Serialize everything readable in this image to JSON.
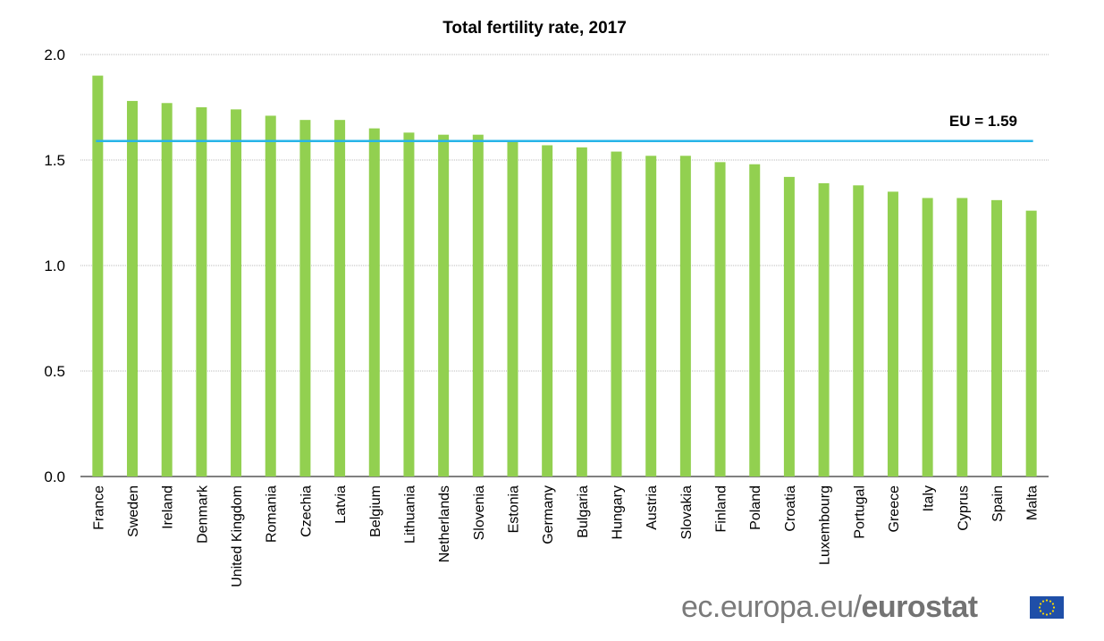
{
  "chart_data": {
    "type": "bar",
    "title": "Total fertility rate, 2017",
    "xlabel": "",
    "ylabel": "",
    "ylim": [
      0,
      2.0
    ],
    "yticks": [
      "0.0",
      "0.5",
      "1.0",
      "1.5",
      "2.0"
    ],
    "grid": true,
    "bar_color": "#92d050",
    "categories": [
      "France",
      "Sweden",
      "Ireland",
      "Denmark",
      "United Kingdom",
      "Romania",
      "Czechia",
      "Latvia",
      "Belgium",
      "Lithuania",
      "Netherlands",
      "Slovenia",
      "Estonia",
      "Germany",
      "Bulgaria",
      "Hungary",
      "Austria",
      "Slovakia",
      "Finland",
      "Poland",
      "Croatia",
      "Luxembourg",
      "Portugal",
      "Greece",
      "Italy",
      "Cyprus",
      "Spain",
      "Malta"
    ],
    "values": [
      1.9,
      1.78,
      1.77,
      1.75,
      1.74,
      1.71,
      1.69,
      1.69,
      1.65,
      1.63,
      1.62,
      1.62,
      1.59,
      1.57,
      1.56,
      1.54,
      1.52,
      1.52,
      1.49,
      1.48,
      1.42,
      1.39,
      1.38,
      1.35,
      1.32,
      1.32,
      1.31,
      1.26
    ],
    "reference_line": {
      "value": 1.59,
      "label": "EU = 1.59",
      "color": "#27b4e8"
    }
  },
  "logo": {
    "prefix": "ec.europa.eu/",
    "brand": "eurostat",
    "flag_icon": "eu-flag-icon"
  }
}
